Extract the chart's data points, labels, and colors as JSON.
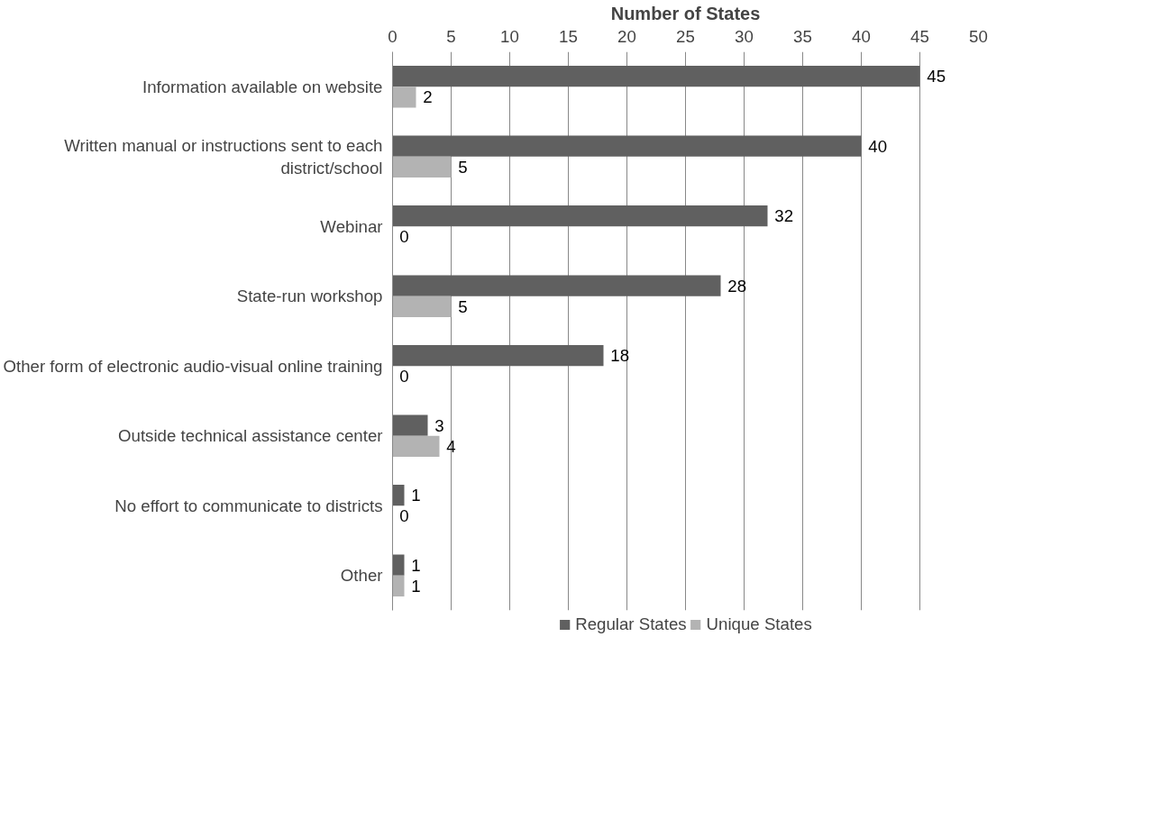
{
  "chart_data": {
    "type": "bar",
    "orientation": "horizontal",
    "xlabel": "Number of States",
    "categories": [
      "Information available on website",
      "Written manual or instructions sent to each district/school",
      "Webinar",
      "State-run workshop",
      "Other form of electronic audio-visual online training",
      "Outside technical assistance center",
      "No effort to communicate to districts",
      "Other"
    ],
    "series": [
      {
        "name": "Regular States",
        "color": "#606060",
        "values": [
          45,
          40,
          32,
          28,
          18,
          3,
          1,
          1
        ]
      },
      {
        "name": "Unique States",
        "color": "#b3b3b3",
        "values": [
          2,
          5,
          0,
          5,
          0,
          4,
          0,
          1
        ]
      }
    ],
    "xlim": [
      0,
      50
    ],
    "xticks": [
      0,
      5,
      10,
      15,
      20,
      25,
      30,
      35,
      40,
      45,
      50
    ],
    "grid": "x",
    "legend": "bottom",
    "data_labels": true
  }
}
